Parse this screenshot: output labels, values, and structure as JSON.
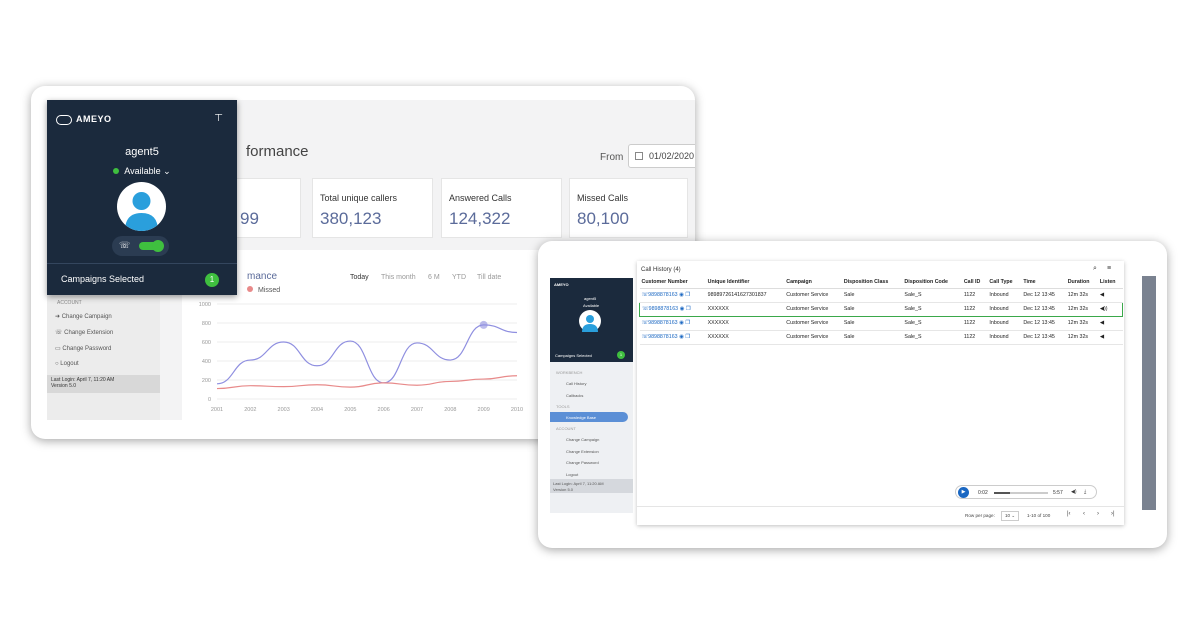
{
  "left": {
    "agent": {
      "logo": "AMEYO",
      "name": "agent5",
      "status": "Available",
      "campaigns_label": "Campaigns Selected",
      "campaigns_count": "1"
    },
    "title": "formance",
    "from_label": "From",
    "from_date": "01/02/2020",
    "kpis": [
      {
        "label": "",
        "value": "99"
      },
      {
        "label": "Total unique callers",
        "value": "380,123"
      },
      {
        "label": "Answered Calls",
        "value": "124,322"
      },
      {
        "label": "Missed Calls",
        "value": "80,100"
      }
    ],
    "chart": {
      "title": "mance",
      "legend_missed": "Missed",
      "ranges": [
        "Today",
        "This month",
        "6 M",
        "YTD",
        "Till date"
      ]
    },
    "menu": {
      "section": "ACCOUNT",
      "items": [
        "Change Campaign",
        "Change Extension",
        "Change Password",
        "Logout"
      ],
      "last_login": "Last Login: April 7, 11:20 AM",
      "version": "Version 5.0"
    }
  },
  "chart_data": {
    "type": "line",
    "x": [
      2001,
      2002,
      2003,
      2004,
      2005,
      2006,
      2007,
      2008,
      2009,
      2010
    ],
    "ylim": [
      0,
      1000
    ],
    "yticks": [
      "0",
      "200",
      "400",
      "600",
      "800",
      "1000"
    ],
    "series": [
      {
        "name": "",
        "values": [
          160,
          410,
          600,
          350,
          610,
          170,
          590,
          410,
          780,
          700
        ],
        "color": "#8f8fe0"
      },
      {
        "name": "Missed",
        "values": [
          110,
          140,
          130,
          150,
          125,
          170,
          145,
          185,
          210,
          245
        ],
        "color": "#e88a8a"
      }
    ]
  },
  "right": {
    "header": "Call History (4)",
    "columns": [
      "Customer Number",
      "Unique Identifier",
      "Campaign",
      "Disposition Class",
      "Disposition Code",
      "Call ID",
      "Call Type",
      "Time",
      "Duration",
      "Listen"
    ],
    "rows": [
      [
        "9898878163",
        "98989726141627301837",
        "Customer Service",
        "Sale",
        "Sale_S",
        "1122",
        "Inbound",
        "Dec 12 13:45",
        "12m 32s"
      ],
      [
        "9898878163",
        "XXXXXX",
        "Customer Service",
        "Sale",
        "Sale_S",
        "1122",
        "Inbound",
        "Dec 12 13:45",
        "12m 32s"
      ],
      [
        "9898878163",
        "XXXXXX",
        "Customer Service",
        "Sale",
        "Sale_S",
        "1122",
        "Inbound",
        "Dec 12 13:45",
        "12m 32s"
      ],
      [
        "9898878163",
        "XXXXXX",
        "Customer Service",
        "Sale",
        "Sale_S",
        "1122",
        "Inbound",
        "Dec 12 13:45",
        "12m 32s"
      ]
    ],
    "player": {
      "current": "0:02",
      "total": "5:57",
      "progress": 0.3
    },
    "pager": {
      "rows_label": "Row per page:",
      "rows_value": "10",
      "range": "1-10 of 100"
    },
    "side": {
      "logo": "AMEYO",
      "name": "agent5",
      "status": "Available",
      "campaigns": "Campaigns Selected",
      "count": "1",
      "sec1": "WORKBENCH",
      "items1": [
        "Call History",
        "Callbacks"
      ],
      "sec2": "TOOLS",
      "active": "Knowledge Base",
      "sec3": "ACCOUNT",
      "items3": [
        "Change Campaign",
        "Change Extension",
        "Change Password",
        "Logout"
      ],
      "last_login": "Last Login: April 7, 11:20 AM",
      "version": "Version 5.0"
    }
  }
}
